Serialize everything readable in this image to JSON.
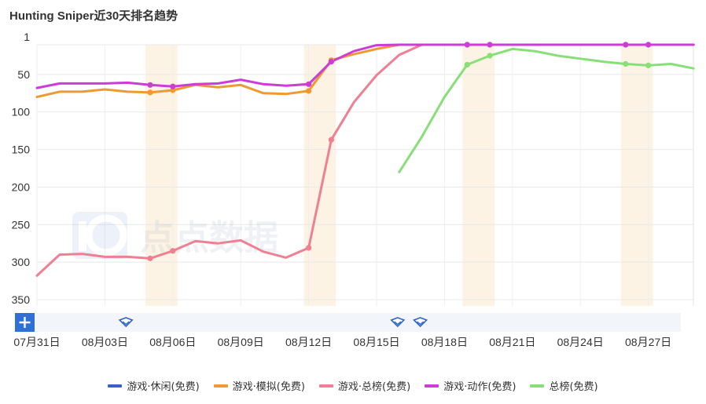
{
  "chart_data": {
    "type": "line",
    "title": "Hunting Sniper近30天排名趋势",
    "xlabel": "",
    "ylabel": "",
    "y_inverted": true,
    "ylim": [
      1,
      350
    ],
    "y_ticks": [
      1,
      50,
      100,
      150,
      200,
      250,
      300,
      350
    ],
    "x_tick_labels": [
      "07月31日",
      "08月03日",
      "08月06日",
      "08月09日",
      "08月12日",
      "08月15日",
      "08月18日",
      "08月21日",
      "08月24日",
      "08月27日"
    ],
    "x": [
      "07月31日",
      "08月01日",
      "08月02日",
      "08月03日",
      "08月04日",
      "08月05日",
      "08月06日",
      "08月07日",
      "08月08日",
      "08月09日",
      "08月10日",
      "08月11日",
      "08月12日",
      "08月13日",
      "08月14日",
      "08月15日",
      "08月16日",
      "08月17日",
      "08月18日",
      "08月19日",
      "08月20日",
      "08月21日",
      "08月22日",
      "08月23日",
      "08月24日",
      "08月25日",
      "08月26日",
      "08月27日",
      "08月28日",
      "08月29日"
    ],
    "highlight_bands": [
      [
        "08月05日",
        "08月06日"
      ],
      [
        "08月12日",
        "08月13日"
      ],
      [
        "08月19日",
        "08月20日"
      ],
      [
        "08月26日",
        "08月27日"
      ]
    ],
    "series": [
      {
        "name": "游戏·休闲(免费)",
        "color": "#3a5fcd",
        "values": [
          null,
          null,
          null,
          null,
          null,
          null,
          null,
          null,
          null,
          null,
          null,
          null,
          null,
          null,
          null,
          null,
          null,
          null,
          null,
          null,
          null,
          null,
          null,
          null,
          null,
          null,
          null,
          null,
          null,
          null
        ],
        "markers": []
      },
      {
        "name": "游戏·模拟(免费)",
        "color": "#ee9a30",
        "values": [
          80,
          73,
          73,
          70,
          73,
          74,
          71,
          64,
          67,
          64,
          75,
          76,
          72,
          31,
          23,
          16,
          8,
          6,
          null,
          null,
          null,
          null,
          null,
          null,
          null,
          null,
          null,
          null,
          null,
          null
        ],
        "markers": [
          5,
          6,
          12,
          13
        ]
      },
      {
        "name": "游戏·总榜(免费)",
        "color": "#ef7f92",
        "values": [
          318,
          290,
          289,
          293,
          293,
          295,
          285,
          272,
          275,
          271,
          286,
          294,
          281,
          137,
          87,
          51,
          24,
          10,
          4,
          3,
          2,
          1,
          1,
          1,
          1,
          1,
          3,
          3,
          3,
          2
        ],
        "markers": [
          5,
          6,
          12,
          13,
          19,
          20,
          26,
          27
        ]
      },
      {
        "name": "游戏·动作(免费)",
        "color": "#cc3cd6",
        "values": [
          68,
          62,
          62,
          62,
          61,
          64,
          66,
          63,
          62,
          57,
          63,
          65,
          63,
          33,
          19,
          11,
          6,
          4,
          2,
          1,
          1,
          1,
          1,
          1,
          1,
          1,
          1,
          1,
          1,
          1
        ],
        "markers": [
          5,
          6,
          12,
          13,
          19,
          20,
          26,
          27
        ]
      },
      {
        "name": "总榜(免费)",
        "color": "#88df78",
        "values": [
          null,
          null,
          null,
          null,
          null,
          null,
          null,
          null,
          null,
          null,
          null,
          null,
          null,
          null,
          null,
          null,
          180,
          133,
          80,
          37,
          25,
          16,
          19,
          25,
          29,
          33,
          36,
          38,
          36,
          42
        ],
        "markers": [
          19,
          20,
          26,
          27
        ]
      }
    ]
  }
}
